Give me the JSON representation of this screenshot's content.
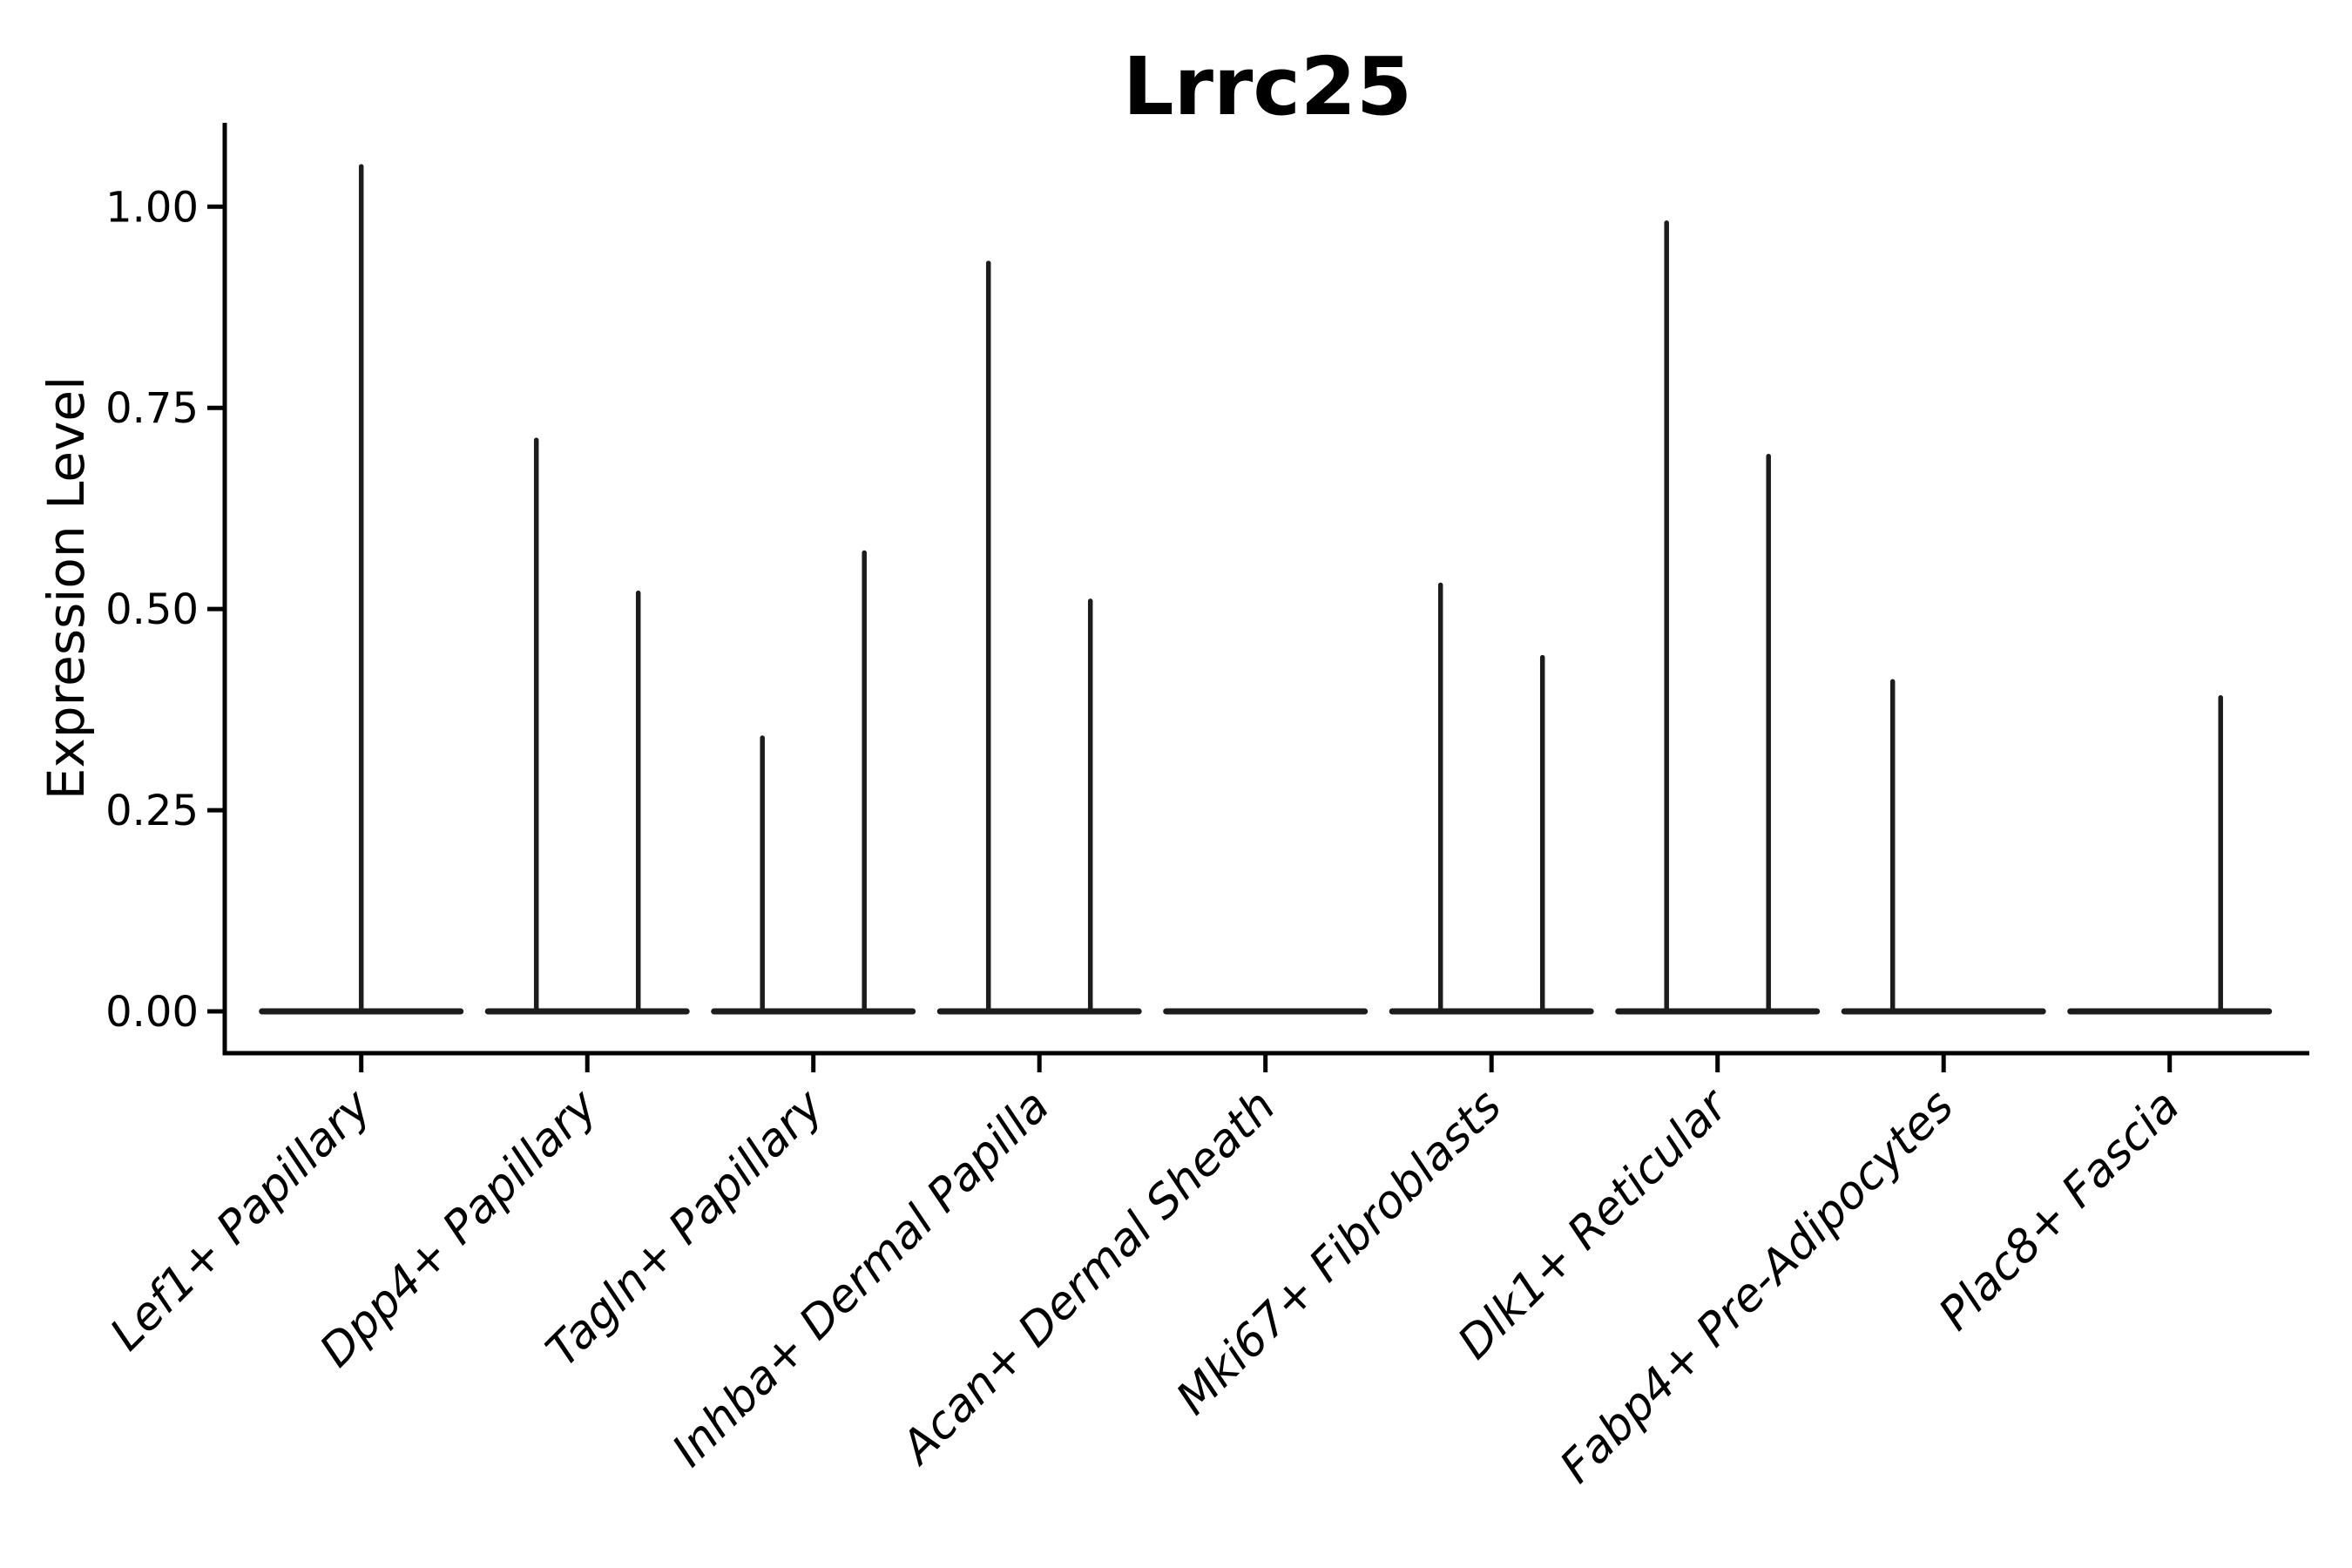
{
  "chart_data": {
    "type": "violin",
    "title": "Lrrc25",
    "xlabel": "",
    "ylabel": "Expression Level",
    "ylim": [
      -0.05,
      1.1
    ],
    "grid": false,
    "legend": "none",
    "background": "#ffffff",
    "yticks": [
      {
        "label": "0.00",
        "value": 0.0
      },
      {
        "label": "0.25",
        "value": 0.25
      },
      {
        "label": "0.50",
        "value": 0.5
      },
      {
        "label": "0.75",
        "value": 0.75
      },
      {
        "label": "1.00",
        "value": 1.0
      }
    ],
    "categories": [
      "Lef1+ Papillary",
      "Dpp4+ Papillary",
      "Tagln+ Papillary",
      "Inhba+ Dermal Papilla",
      "Acan+ Dermal Sheath",
      "Mki67+ Fibroblasts",
      "Dlk1+ Reticular",
      "Fabp4+ Pre-Adipocytes",
      "Plac8+ Fascia"
    ],
    "violins": [
      {
        "category": "Lef1+ Papillary",
        "baseline_value": 0,
        "spikes": [
          {
            "pos": "center",
            "max": 1.05
          }
        ]
      },
      {
        "category": "Dpp4+ Papillary",
        "baseline_value": 0,
        "spikes": [
          {
            "pos": "left",
            "max": 0.71
          },
          {
            "pos": "right",
            "max": 0.52
          }
        ]
      },
      {
        "category": "Tagln+ Papillary",
        "baseline_value": 0,
        "spikes": [
          {
            "pos": "left",
            "max": 0.34
          },
          {
            "pos": "right",
            "max": 0.57
          }
        ]
      },
      {
        "category": "Inhba+ Dermal Papilla",
        "baseline_value": 0,
        "spikes": [
          {
            "pos": "left",
            "max": 0.93
          },
          {
            "pos": "right",
            "max": 0.51
          }
        ]
      },
      {
        "category": "Acan+ Dermal Sheath",
        "baseline_value": 0,
        "spikes": []
      },
      {
        "category": "Mki67+ Fibroblasts",
        "baseline_value": 0,
        "spikes": [
          {
            "pos": "left",
            "max": 0.53
          },
          {
            "pos": "right",
            "max": 0.44
          }
        ]
      },
      {
        "category": "Dlk1+ Reticular",
        "baseline_value": 0,
        "spikes": [
          {
            "pos": "left",
            "max": 0.98
          },
          {
            "pos": "right",
            "max": 0.69
          }
        ]
      },
      {
        "category": "Fabp4+ Pre-Adipocytes",
        "baseline_value": 0,
        "spikes": [
          {
            "pos": "left",
            "max": 0.41
          }
        ]
      },
      {
        "category": "Plac8+ Fascia",
        "baseline_value": 0,
        "spikes": [
          {
            "pos": "right",
            "max": 0.39
          }
        ]
      }
    ],
    "colors": {
      "violin_stroke": "#1c1c1c",
      "axis": "#000000",
      "text": "#000000",
      "background": "#ffffff"
    }
  }
}
